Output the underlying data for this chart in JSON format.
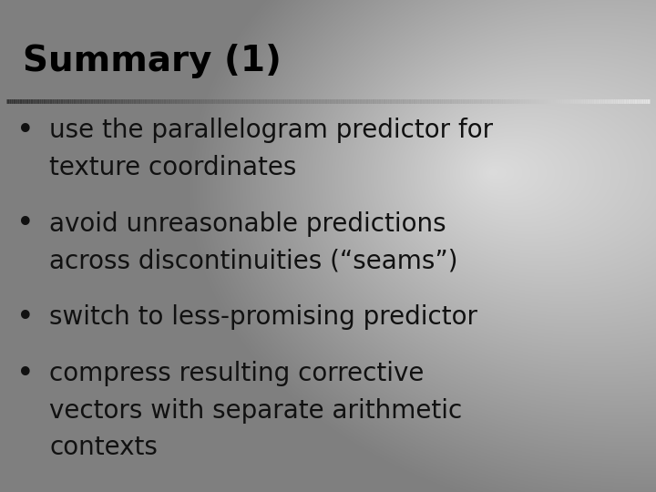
{
  "title": "Summary (1)",
  "title_fontsize": 28,
  "title_fontweight": "bold",
  "title_color": "#000000",
  "bullet_points": [
    [
      "use the parallelogram predictor for",
      "texture coordinates"
    ],
    [
      "avoid unreasonable predictions",
      "across discontinuities (“seams”)"
    ],
    [
      "switch to less-promising predictor"
    ],
    [
      "compress resulting corrective",
      "vectors with separate arithmetic",
      "contexts"
    ]
  ],
  "bullet_fontsize": 20,
  "bullet_color": "#111111",
  "figsize": [
    7.2,
    5.4
  ],
  "dpi": 100
}
